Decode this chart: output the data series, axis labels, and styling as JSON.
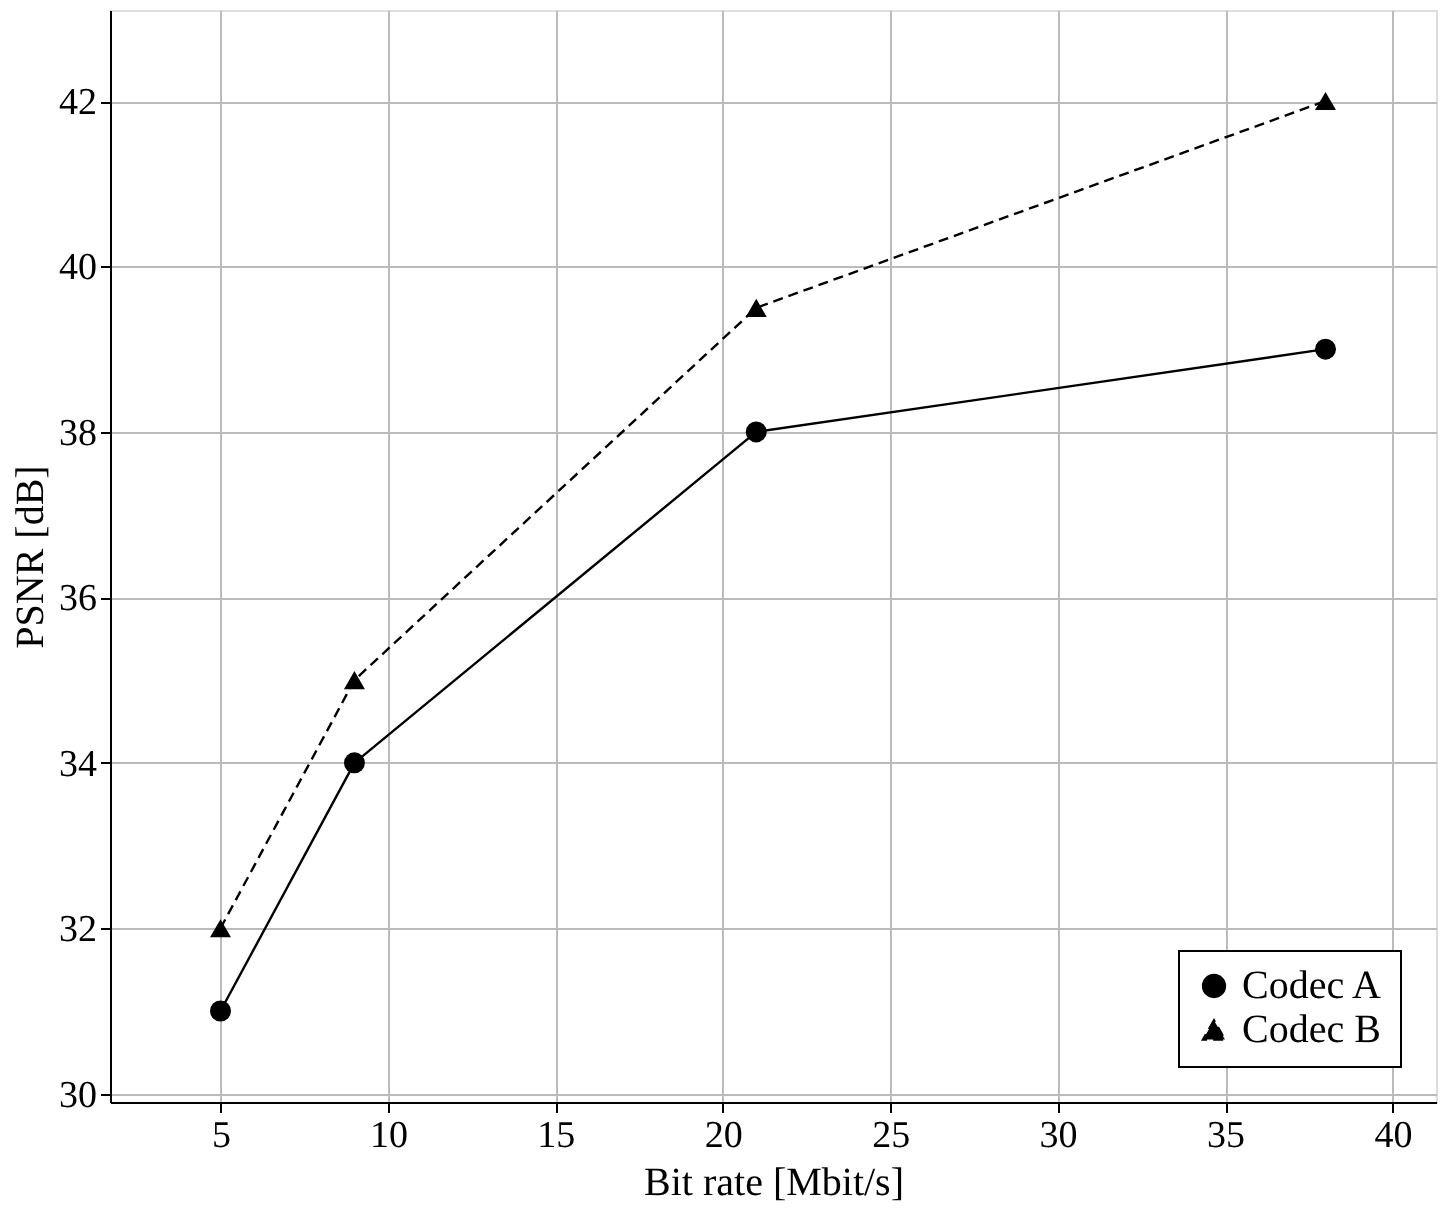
{
  "chart_data": {
    "type": "line",
    "xlabel": "Bit rate [Mbit/s]",
    "ylabel": "PSNR [dB]",
    "x": [
      5,
      9,
      21,
      38
    ],
    "series": [
      {
        "name": "Codec A",
        "color": "#000000",
        "values": [
          31,
          34,
          38,
          39
        ],
        "marker": "circle",
        "line_style": "solid"
      },
      {
        "name": "Codec B",
        "color": "#000000",
        "values": [
          32,
          35,
          39.5,
          42
        ],
        "marker": "triangle",
        "line_style": "dashed"
      }
    ],
    "xlim": [
      1.7,
      41.3
    ],
    "xticks": [
      5,
      10,
      15,
      20,
      25,
      30,
      35,
      40
    ],
    "ylim": [
      29.9,
      43.1
    ],
    "yticks": [
      30,
      32,
      34,
      36,
      38,
      40,
      42
    ],
    "grid": true,
    "legend": "bottom right"
  }
}
